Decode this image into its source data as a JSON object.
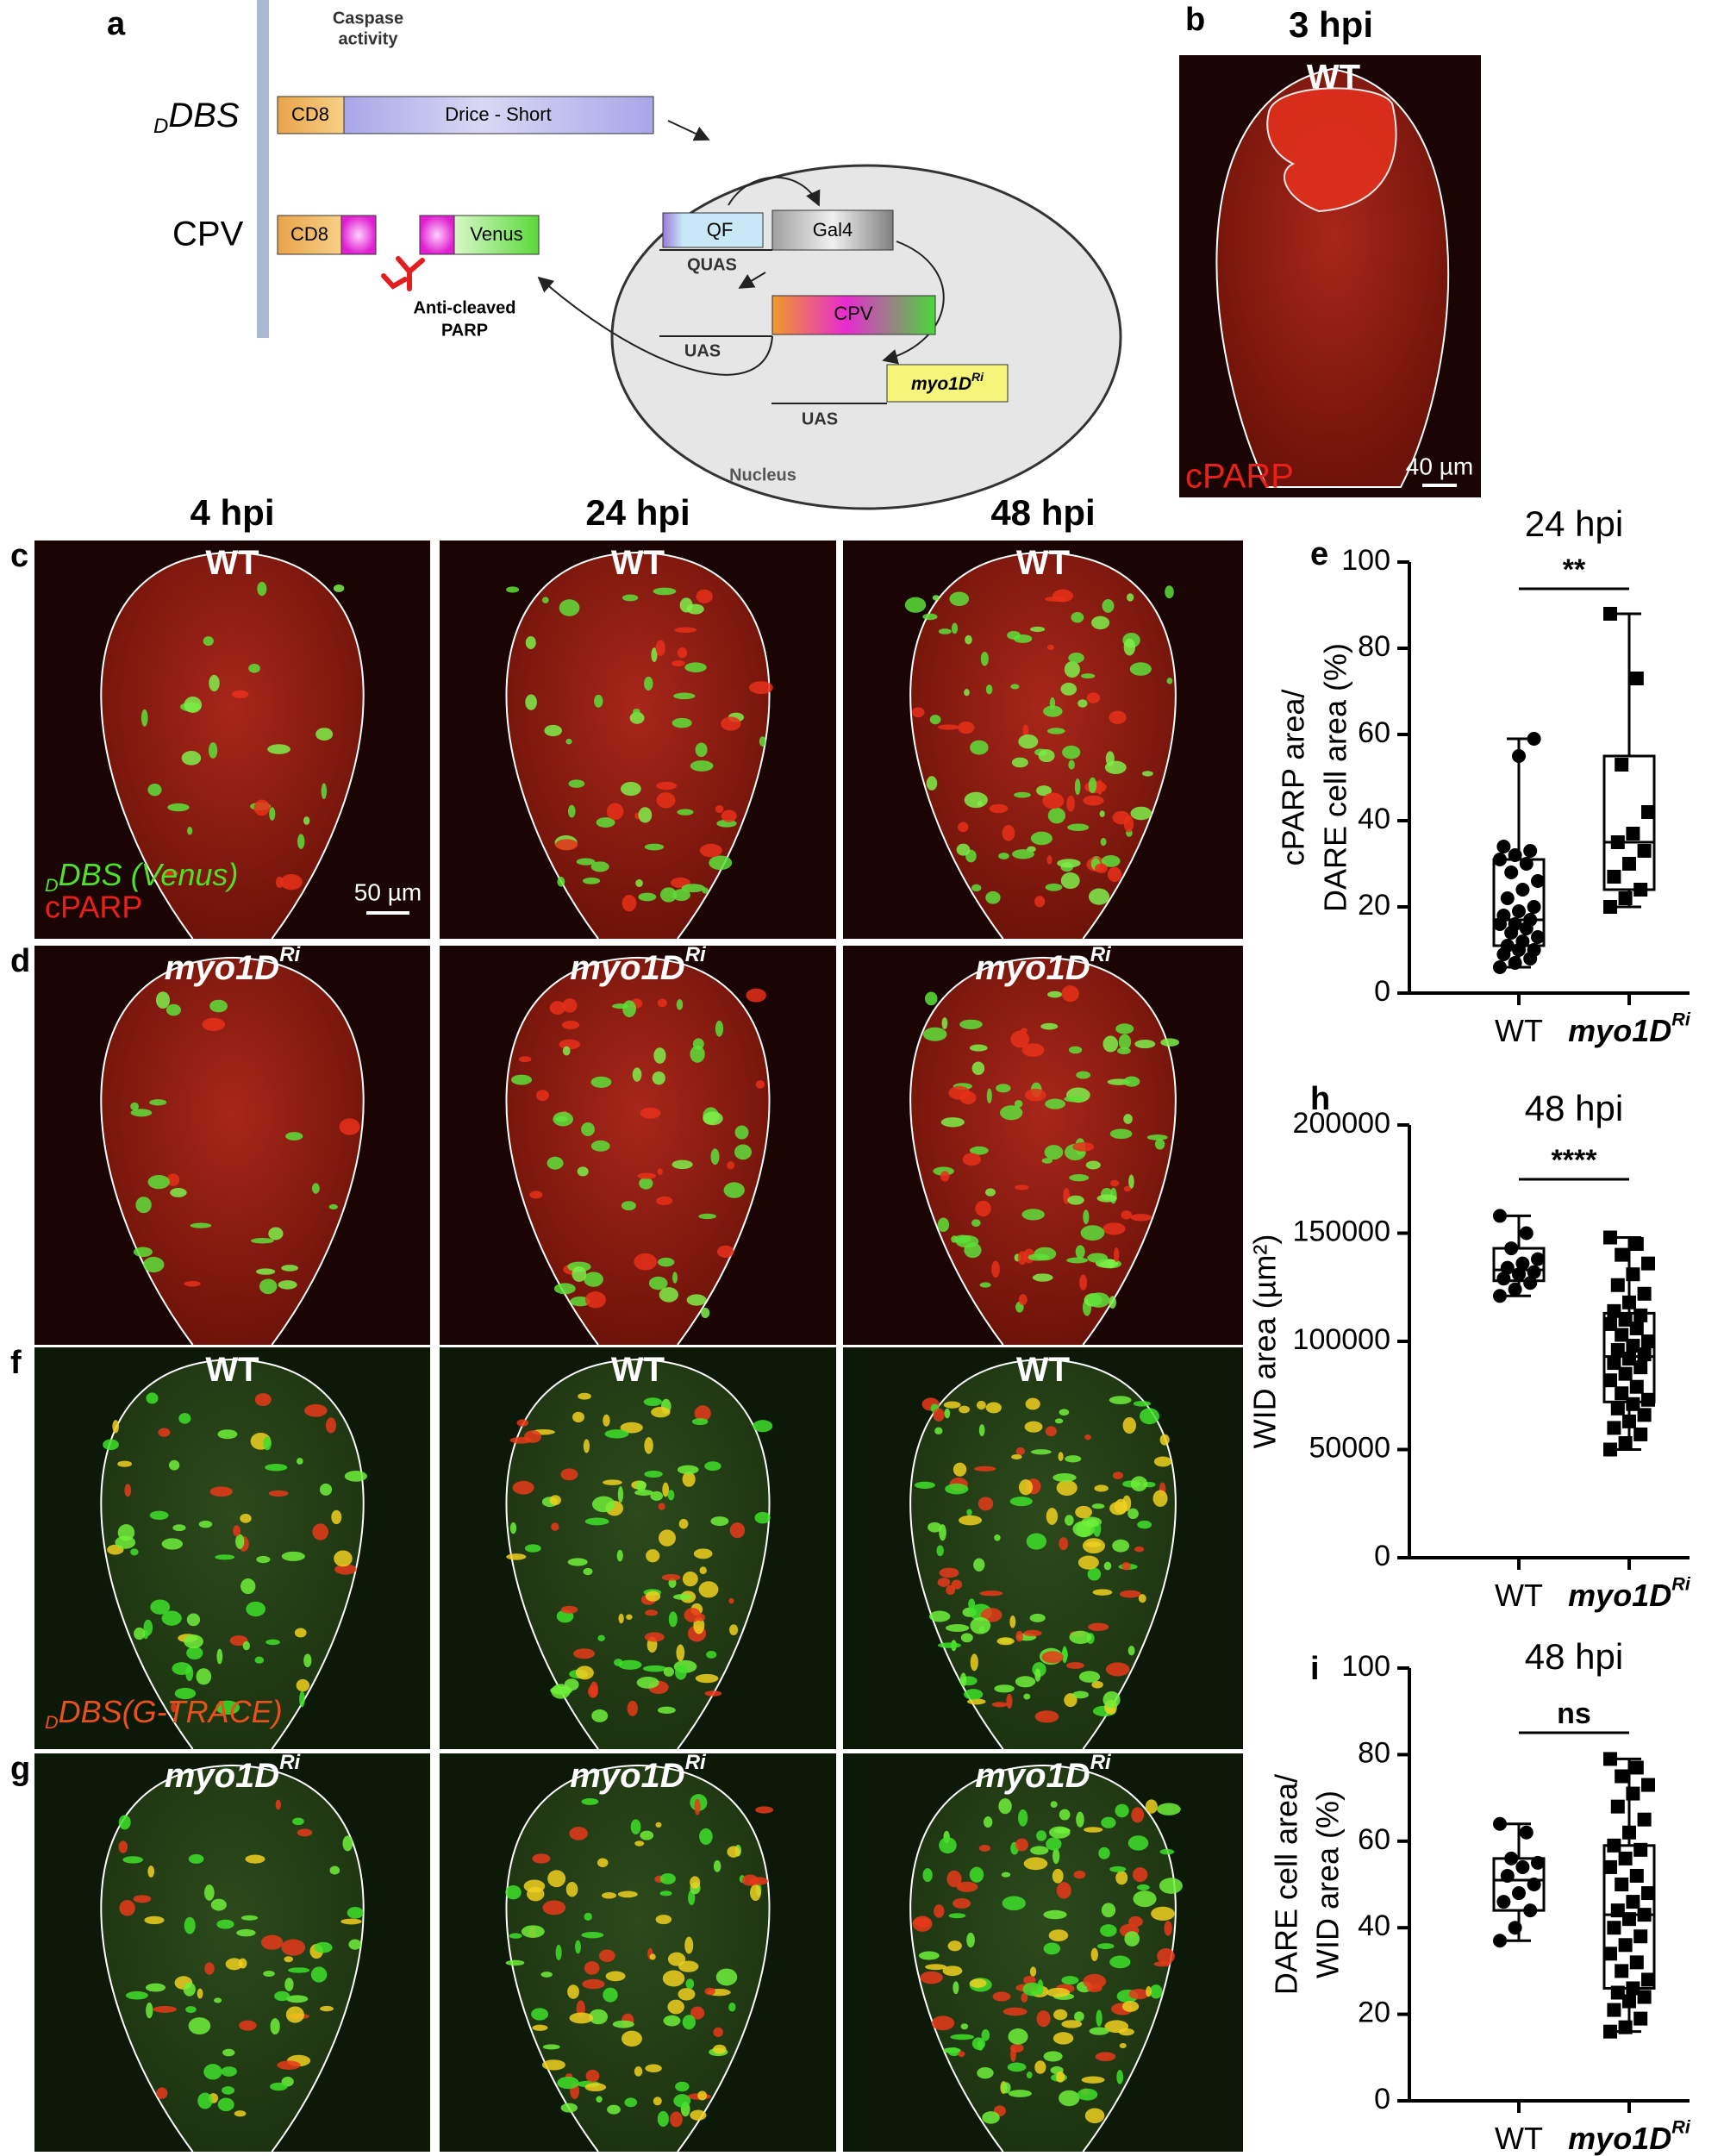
{
  "figure": {
    "a": {
      "label": "a",
      "caspase": [
        "Caspase",
        "activity"
      ],
      "ddbs": {
        "sub": "D",
        "text": "DBS"
      },
      "cd8": [
        "CD8",
        "CD8"
      ],
      "drice": "Drice - Short",
      "cpv": "CPV",
      "venus": "Venus",
      "antibody": [
        "Anti-cleaved",
        "PARP"
      ],
      "qf": "QF",
      "gal4": "Gal4",
      "quas": "QUAS",
      "cpv_box": "CPV",
      "uas": [
        "UAS",
        "UAS"
      ],
      "myo": {
        "text": "myo1D",
        "sup": "Ri"
      },
      "nucleus": "Nucleus"
    },
    "b": {
      "label": "b",
      "title": "3 hpi",
      "genotype": "WT",
      "stain": "cPARP",
      "scale": "40 µm"
    },
    "columns": [
      "4 hpi",
      "24 hpi",
      "48 hpi"
    ],
    "rows": [
      {
        "label": "c",
        "genotype": {
          "text": "WT"
        },
        "marker": {
          "sub": "D",
          "text": "DBS (Venus)"
        },
        "stain": "cPARP",
        "scale": "50 µm"
      },
      {
        "label": "d",
        "genotype": {
          "text": "myo1D",
          "sup": "Ri"
        }
      },
      {
        "label": "f",
        "genotype": {
          "text": "WT"
        },
        "marker": {
          "sub": "D",
          "text": "DBS(G-TRACE)"
        }
      },
      {
        "label": "g",
        "genotype": {
          "text": "myo1D",
          "sup": "Ri"
        }
      }
    ]
  },
  "chart_data": [
    {
      "type": "box",
      "label": "e",
      "title": "24 hpi",
      "ylabel": [
        "cPARP area/",
        "DARE cell area (%)"
      ],
      "categories": [
        {
          "text": "WT"
        },
        {
          "text": "myo1D",
          "sup": "Ri"
        }
      ],
      "markers": [
        "circle",
        "square"
      ],
      "color": "#000000",
      "ylim": [
        0,
        100
      ],
      "yticks": [
        0,
        20,
        40,
        60,
        80,
        100
      ],
      "significance": "**",
      "boxes": [
        {
          "min": 6,
          "q1": 11,
          "median": 17,
          "q3": 31,
          "max": 59,
          "points": [
            6,
            7,
            8,
            9,
            10,
            10,
            11,
            12,
            13,
            14,
            15,
            16,
            16,
            17,
            18,
            19,
            20,
            22,
            24,
            26,
            28,
            30,
            31,
            32,
            33,
            34,
            55,
            59
          ]
        },
        {
          "min": 20,
          "q1": 24,
          "median": 35,
          "q3": 55,
          "max": 88,
          "points": [
            20,
            22,
            24,
            27,
            30,
            33,
            35,
            37,
            42,
            53,
            73,
            88
          ]
        }
      ]
    },
    {
      "type": "box",
      "label": "h",
      "title": "48 hpi",
      "ylabel": [
        "WID area (µm²)"
      ],
      "categories": [
        {
          "text": "WT"
        },
        {
          "text": "myo1D",
          "sup": "Ri"
        }
      ],
      "markers": [
        "circle",
        "square"
      ],
      "color": "#000000",
      "ylim": [
        0,
        200000
      ],
      "yticks": [
        0,
        50000,
        100000,
        150000,
        200000
      ],
      "significance": "****",
      "boxes": [
        {
          "min": 121000,
          "q1": 128000,
          "median": 133000,
          "q3": 143000,
          "max": 158000,
          "points": [
            121000,
            124000,
            127000,
            129000,
            131000,
            132000,
            134000,
            136000,
            138000,
            143000,
            150000,
            158000
          ]
        },
        {
          "min": 50000,
          "q1": 72000,
          "median": 93000,
          "q3": 113000,
          "max": 148000,
          "points": [
            50000,
            53000,
            57000,
            60000,
            63000,
            66000,
            69000,
            71000,
            73000,
            76000,
            79000,
            82000,
            85000,
            88000,
            90000,
            92000,
            94000,
            96000,
            98000,
            100000,
            103000,
            106000,
            108000,
            110000,
            112000,
            114000,
            118000,
            122000,
            126000,
            131000,
            136000,
            140000,
            145000,
            148000
          ]
        }
      ]
    },
    {
      "type": "box",
      "label": "i",
      "title": "48 hpi",
      "ylabel": [
        "DARE cell area/",
        "WID area (%)"
      ],
      "categories": [
        {
          "text": "WT"
        },
        {
          "text": "myo1D",
          "sup": "Ri"
        }
      ],
      "markers": [
        "circle",
        "square"
      ],
      "color": "#000000",
      "ylim": [
        0,
        100
      ],
      "yticks": [
        0,
        20,
        40,
        60,
        80,
        100
      ],
      "significance": "ns",
      "boxes": [
        {
          "min": 37,
          "q1": 44,
          "median": 51,
          "q3": 56,
          "max": 64,
          "points": [
            37,
            40,
            44,
            46,
            48,
            50,
            52,
            54,
            55,
            56,
            62,
            64
          ]
        },
        {
          "min": 16,
          "q1": 26,
          "median": 43,
          "q3": 59,
          "max": 79,
          "points": [
            16,
            17,
            19,
            21,
            23,
            24,
            25,
            26,
            28,
            30,
            32,
            34,
            36,
            38,
            40,
            42,
            43,
            44,
            46,
            48,
            50,
            52,
            54,
            56,
            58,
            59,
            62,
            65,
            68,
            71,
            73,
            75,
            77,
            79
          ]
        }
      ]
    }
  ]
}
